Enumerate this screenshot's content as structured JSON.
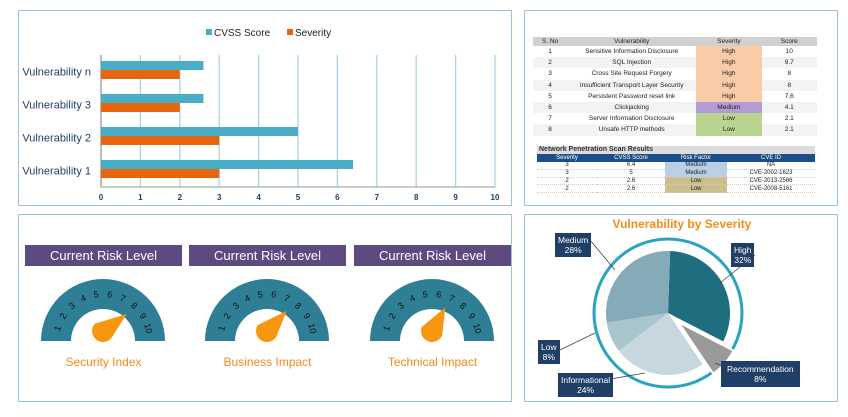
{
  "chart_data": {
    "type": "bar",
    "orientation": "horizontal",
    "categories": [
      "Vulnerability 1",
      "Vulnerability 2",
      "Vulnerability 3",
      "Vulnerability n"
    ],
    "series": [
      {
        "name": "CVSS Score",
        "color": "#4aadc6",
        "values": [
          6.4,
          5,
          2.6,
          2.6
        ]
      },
      {
        "name": "Severity",
        "color": "#e8650f",
        "values": [
          3,
          3,
          2,
          2
        ]
      }
    ],
    "xlim": [
      0,
      10
    ],
    "xticks": [
      "0",
      "1",
      "2",
      "3",
      "4",
      "5",
      "6",
      "7",
      "8",
      "9",
      "10"
    ],
    "grid": true,
    "legend": "top"
  },
  "vuln_table": {
    "headers": [
      "S. No",
      "Vulnerability",
      "Severity",
      "Score"
    ],
    "rows": [
      [
        "1",
        "Sensitive Information Disclosure",
        "High",
        "10"
      ],
      [
        "2",
        "SQL Injection",
        "High",
        "9.7"
      ],
      [
        "3",
        "Cross Site Request Forgery",
        "High",
        "8"
      ],
      [
        "4",
        "Insufficient Transport Layer Security",
        "High",
        "8"
      ],
      [
        "5",
        "Persistent Password reset link",
        "High",
        "7.6"
      ],
      [
        "6",
        "Clickjacking",
        "Medium",
        "4.1"
      ],
      [
        "7",
        "Server Information Disclosure",
        "Low",
        "2.1"
      ],
      [
        "8",
        "Unsafe HTTP methods",
        "Low",
        "2.1"
      ]
    ],
    "severity_colors": {
      "High": "#f9cba6",
      "Medium": "#b49ad6",
      "Low": "#b8d48f"
    }
  },
  "scan_table": {
    "title": "Network Penetration Scan Results",
    "headers": [
      "Severity",
      "CVSS Score",
      "Risk Factor",
      "CVE ID"
    ],
    "rows": [
      [
        "3",
        "6.4",
        "Medium",
        "NA"
      ],
      [
        "3",
        "5",
        "Medium",
        "CVE-2002-1623"
      ],
      [
        "2",
        "2.6",
        "Low",
        "CVE-2013-2566"
      ],
      [
        "2",
        "2.6",
        "Low",
        "CVE-2008-5161"
      ]
    ],
    "risk_colors": {
      "Medium": "#b9cfe6",
      "Low": "#cbbf8c"
    }
  },
  "gauges": [
    {
      "header": "Current Risk Level",
      "label": "Security Index",
      "value": 8
    },
    {
      "header": "Current Risk Level",
      "label": "Business Impact",
      "value": 7.5
    },
    {
      "header": "Current Risk Level",
      "label": "Technical Impact",
      "value": 6.8
    }
  ],
  "gauge_ticks": [
    "1",
    "2",
    "3",
    "4",
    "5",
    "6",
    "7",
    "8",
    "9",
    "10"
  ],
  "pie": {
    "title": "Vulnerability by Severity",
    "slices": [
      {
        "name": "High",
        "pct": 32,
        "color": "#1f6e80"
      },
      {
        "name": "Recommendation",
        "pct": 8,
        "color": "#9a9a9a",
        "exploded": true
      },
      {
        "name": "Informational",
        "pct": 24,
        "color": "#c6d7dd"
      },
      {
        "name": "Low",
        "pct": 8,
        "color": "#a9c5cd"
      },
      {
        "name": "Medium",
        "pct": 28,
        "color": "#84abb7"
      }
    ]
  }
}
